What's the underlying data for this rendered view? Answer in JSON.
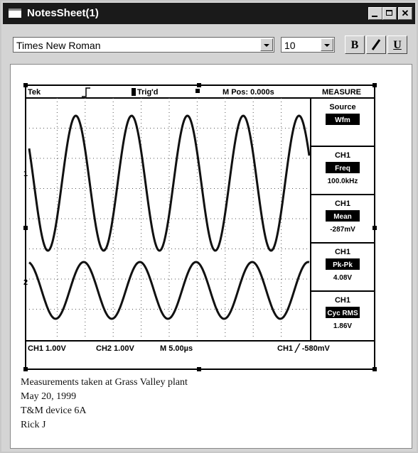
{
  "window": {
    "title": "NotesSheet(1)"
  },
  "toolbar": {
    "font": "Times New Roman",
    "size": "10",
    "bold": "B",
    "underline": "U"
  },
  "scope": {
    "header": [
      "Tek",
      "Trig'd",
      "M Pos: 0.000s",
      "MEASURE"
    ],
    "measurements": [
      {
        "channel": "Source",
        "box": "Wfm"
      },
      {
        "channel": "CH1",
        "box": "Freq",
        "value": "100.0kHz"
      },
      {
        "channel": "CH1",
        "box": "Mean",
        "value": "-287mV"
      },
      {
        "channel": "CH1",
        "box": "Pk-Pk",
        "value": "4.08V"
      },
      {
        "channel": "CH1",
        "box": "Cyc RMS",
        "value": "1.86V"
      }
    ],
    "markers": [
      "1",
      "2"
    ],
    "footer": [
      "CH1  1.00V",
      "CH2  1.00V",
      "M 5.00µs",
      "CH1 ╱ -580mV"
    ]
  },
  "notes": [
    "Measurements taken at Grass Valley plant",
    "May 20, 1999",
    "T&M device 6A",
    "Rick J"
  ]
}
